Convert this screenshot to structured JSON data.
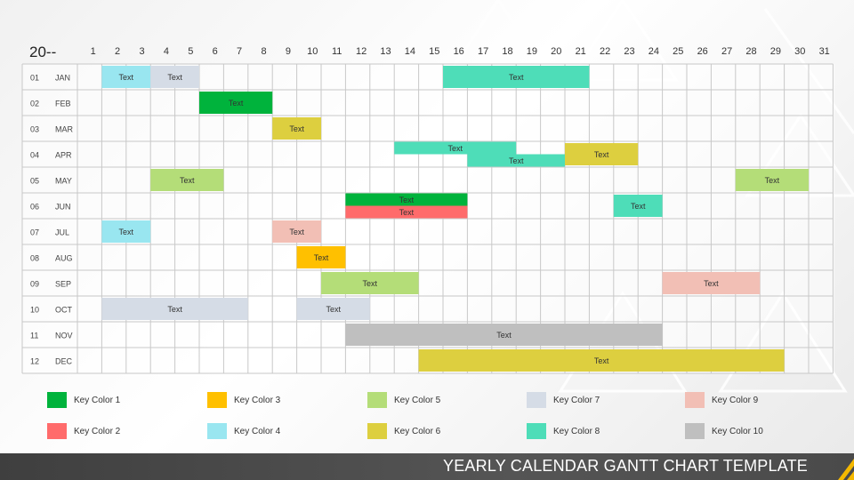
{
  "year_label": "20--",
  "footer_title": "YEARLY CALENDAR GANTT CHART TEMPLATE",
  "chart_data": {
    "type": "gantt",
    "days": [
      "1",
      "2",
      "3",
      "4",
      "5",
      "6",
      "7",
      "8",
      "9",
      "10",
      "11",
      "12",
      "13",
      "14",
      "15",
      "16",
      "17",
      "18",
      "19",
      "20",
      "21",
      "22",
      "23",
      "24",
      "25",
      "26",
      "27",
      "28",
      "29",
      "30",
      "31"
    ],
    "months": [
      {
        "num": "01",
        "name": "JAN"
      },
      {
        "num": "02",
        "name": "FEB"
      },
      {
        "num": "03",
        "name": "MAR"
      },
      {
        "num": "04",
        "name": "APR"
      },
      {
        "num": "05",
        "name": "MAY"
      },
      {
        "num": "06",
        "name": "JUN"
      },
      {
        "num": "07",
        "name": "JUL"
      },
      {
        "num": "08",
        "name": "AUG"
      },
      {
        "num": "09",
        "name": "SEP"
      },
      {
        "num": "10",
        "name": "OCT"
      },
      {
        "num": "11",
        "name": "NOV"
      },
      {
        "num": "12",
        "name": "DEC"
      }
    ],
    "keys": [
      {
        "name": "Key Color 1",
        "color": "#00B33C"
      },
      {
        "name": "Key Color 2",
        "color": "#FF6B6B"
      },
      {
        "name": "Key Color 3",
        "color": "#FFC000"
      },
      {
        "name": "Key Color 4",
        "color": "#99E6F0"
      },
      {
        "name": "Key Color 5",
        "color": "#B4DD78"
      },
      {
        "name": "Key Color 6",
        "color": "#DDCF3F"
      },
      {
        "name": "Key Color 7",
        "color": "#D5DCE6"
      },
      {
        "name": "Key Color 8",
        "color": "#4EDDB8"
      },
      {
        "name": "Key Color 9",
        "color": "#F2BFB5"
      },
      {
        "name": "Key Color 10",
        "color": "#BFBFBF"
      }
    ],
    "tasks": [
      {
        "month": 1,
        "start": 2,
        "end": 3,
        "label": "Text",
        "key": 4,
        "lane": "full"
      },
      {
        "month": 1,
        "start": 4,
        "end": 5,
        "label": "Text",
        "key": 7,
        "lane": "full"
      },
      {
        "month": 1,
        "start": 16,
        "end": 21,
        "label": "Text",
        "key": 8,
        "lane": "full"
      },
      {
        "month": 2,
        "start": 6,
        "end": 8,
        "label": "Text",
        "key": 1,
        "lane": "full"
      },
      {
        "month": 3,
        "start": 9,
        "end": 10,
        "label": "Text",
        "key": 6,
        "lane": "full"
      },
      {
        "month": 4,
        "start": 14,
        "end": 18,
        "label": "Text",
        "key": 8,
        "lane": "top"
      },
      {
        "month": 4,
        "start": 17,
        "end": 20,
        "label": "Text",
        "key": 8,
        "lane": "bottom"
      },
      {
        "month": 4,
        "start": 21,
        "end": 23,
        "label": "Text",
        "key": 6,
        "lane": "full"
      },
      {
        "month": 5,
        "start": 4,
        "end": 6,
        "label": "Text",
        "key": 5,
        "lane": "full"
      },
      {
        "month": 5,
        "start": 28,
        "end": 30,
        "label": "Text",
        "key": 5,
        "lane": "full"
      },
      {
        "month": 6,
        "start": 12,
        "end": 16,
        "label": "Text",
        "key": 1,
        "lane": "top"
      },
      {
        "month": 6,
        "start": 12,
        "end": 16,
        "label": "Text",
        "key": 2,
        "lane": "bottom"
      },
      {
        "month": 6,
        "start": 23,
        "end": 24,
        "label": "Text",
        "key": 8,
        "lane": "full"
      },
      {
        "month": 7,
        "start": 2,
        "end": 3,
        "label": "Text",
        "key": 4,
        "lane": "full"
      },
      {
        "month": 7,
        "start": 9,
        "end": 10,
        "label": "Text",
        "key": 9,
        "lane": "full"
      },
      {
        "month": 8,
        "start": 10,
        "end": 11,
        "label": "Text",
        "key": 3,
        "lane": "full"
      },
      {
        "month": 9,
        "start": 11,
        "end": 14,
        "label": "Text",
        "key": 5,
        "lane": "full"
      },
      {
        "month": 9,
        "start": 25,
        "end": 28,
        "label": "Text",
        "key": 9,
        "lane": "full"
      },
      {
        "month": 10,
        "start": 2,
        "end": 7,
        "label": "Text",
        "key": 7,
        "lane": "full"
      },
      {
        "month": 10,
        "start": 10,
        "end": 12,
        "label": "Text",
        "key": 7,
        "lane": "full"
      },
      {
        "month": 11,
        "start": 12,
        "end": 24,
        "label": "Text",
        "key": 10,
        "lane": "full"
      },
      {
        "month": 12,
        "start": 15,
        "end": 29,
        "label": "Text",
        "key": 6,
        "lane": "full"
      }
    ]
  }
}
